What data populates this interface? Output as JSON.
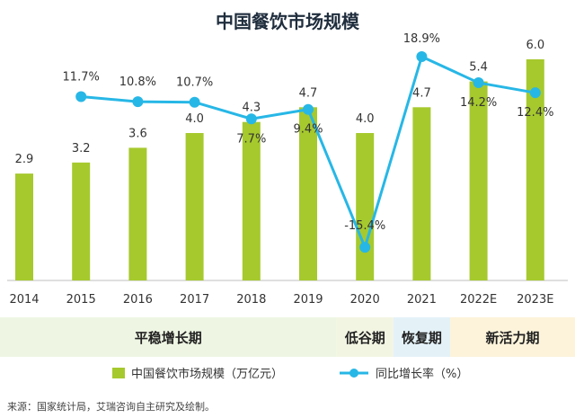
{
  "title": "中国餐饮市场规模",
  "source": "来源：国家统计局，艾瑞咨询自主研究及绘制。",
  "colors": {
    "bar": "#a6c92d",
    "line": "#27b7e6",
    "phase_stable": "#eef6e3",
    "phase_low": "#f3f5e3",
    "phase_recovery": "#e4f2f8",
    "phase_vitality": "#fcf3da"
  },
  "phases": [
    {
      "label": "平稳增长期",
      "start_index": 0,
      "end_index": 5
    },
    {
      "label": "低谷期",
      "start_index": 6,
      "end_index": 6
    },
    {
      "label": "恢复期",
      "start_index": 7,
      "end_index": 7
    },
    {
      "label": "新活力期",
      "start_index": 8,
      "end_index": 9
    }
  ],
  "legend": {
    "bar_label": "中国餐饮市场规模（万亿元）",
    "line_label": "同比增长率（%）"
  },
  "chart_data": {
    "type": "bar",
    "categories": [
      "2014",
      "2015",
      "2016",
      "2017",
      "2018",
      "2019",
      "2020",
      "2021",
      "2022E",
      "2023E"
    ],
    "series": [
      {
        "name": "中国餐饮市场规模（万亿元）",
        "type": "bar",
        "values": [
          2.9,
          3.2,
          3.6,
          4.0,
          4.3,
          4.7,
          4.0,
          4.7,
          5.4,
          6.0
        ],
        "labels": [
          "2.9",
          "3.2",
          "3.6",
          "4.0",
          "4.3",
          "4.7",
          "4.0",
          "4.7",
          "5.4",
          "6.0"
        ]
      },
      {
        "name": "同比增长率（%）",
        "type": "line",
        "values": [
          null,
          11.7,
          10.8,
          10.7,
          7.7,
          9.4,
          -15.4,
          18.9,
          14.2,
          12.4
        ],
        "labels": [
          "",
          "11.7%",
          "10.8%",
          "10.7%",
          "7.7%",
          "9.4%",
          "-15.4%",
          "18.9%",
          "14.2%",
          "12.4%"
        ]
      }
    ],
    "bar_ylim": [
      0,
      6.0
    ],
    "line_ylim": [
      -17,
      21
    ],
    "grid": false,
    "legend_position": "bottom"
  }
}
